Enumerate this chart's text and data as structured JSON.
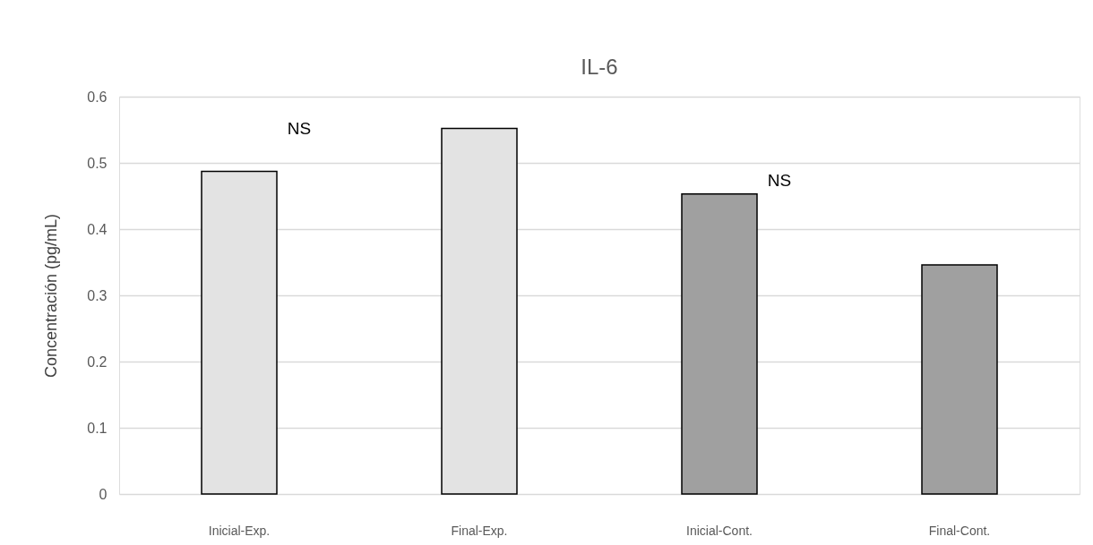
{
  "chart_data": {
    "type": "bar",
    "title": "IL-6",
    "ylabel": "Concentración (pg/mL)",
    "categories": [
      "Inicial-Exp.",
      "Final-Exp.",
      "Inicial-Cont.",
      "Final-Cont."
    ],
    "values": [
      0.487,
      0.552,
      0.453,
      0.346
    ],
    "colors": [
      "#e3e3e3",
      "#e3e3e3",
      "#a0a0a0",
      "#a0a0a0"
    ],
    "ylim": [
      0,
      0.6
    ],
    "yticks": [
      0,
      0.1,
      0.2,
      0.3,
      0.4,
      0.5,
      0.6
    ],
    "grid": "y",
    "annotations": [
      "NS",
      "NS"
    ]
  }
}
